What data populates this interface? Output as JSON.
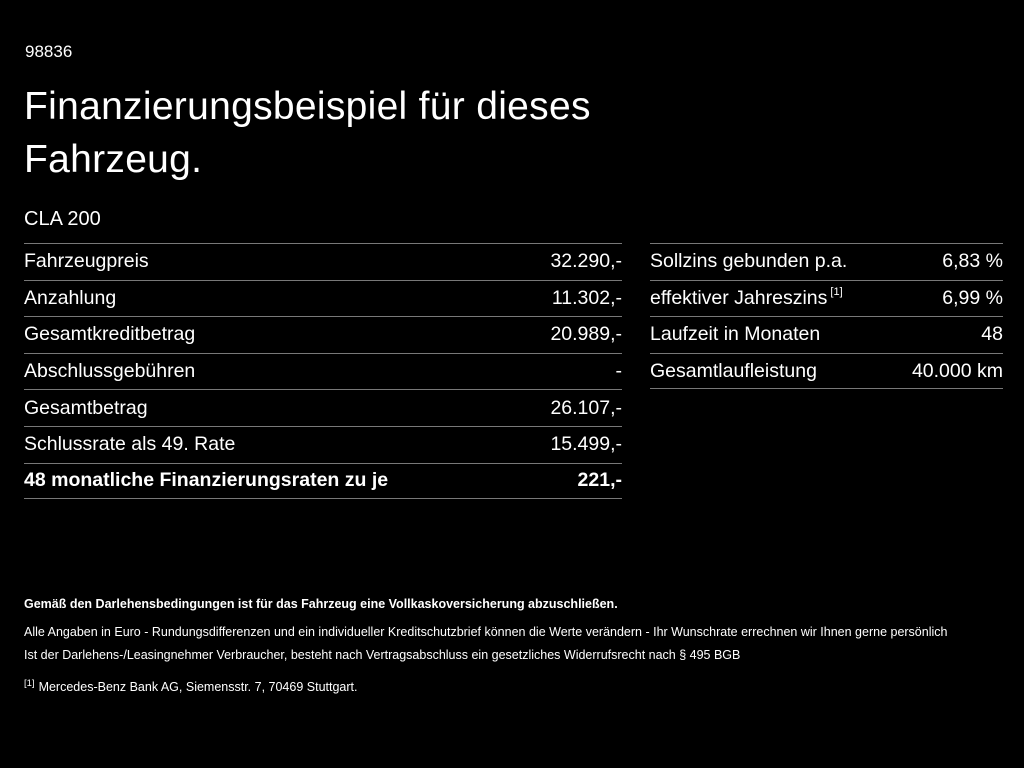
{
  "colors": {
    "background": "#000000",
    "text": "#ffffff",
    "divider": "#787878"
  },
  "header": {
    "ref_number": "98836",
    "title_line1": "Finanzierungsbeispiel für dieses",
    "title_line2": "Fahrzeug.",
    "model": "CLA 200"
  },
  "finance_table": {
    "rows": [
      {
        "label": "Fahrzeugpreis",
        "value": "32.290,-"
      },
      {
        "label": "Anzahlung",
        "value": "11.302,-"
      },
      {
        "label": "Gesamtkreditbetrag",
        "value": "20.989,-"
      },
      {
        "label": "Abschlussgebühren",
        "value": "-"
      },
      {
        "label": "Gesamtbetrag",
        "value": "26.107,-"
      },
      {
        "label": "Schlussrate als 49. Rate",
        "value": "15.499,-"
      },
      {
        "label": "48 monatliche Finanzierungsraten zu je",
        "value": "221,-"
      }
    ]
  },
  "conditions_table": {
    "rows": [
      {
        "label": "Sollzins gebunden p.a.",
        "sup": "",
        "value": "6,83 %"
      },
      {
        "label": "effektiver Jahreszins",
        "sup": "[1]",
        "value": "6,99 %"
      },
      {
        "label": "Laufzeit in Monaten",
        "sup": "",
        "value": "48"
      },
      {
        "label": "Gesamtlaufleistung",
        "sup": "",
        "value": "40.000 km"
      }
    ]
  },
  "footnotes": {
    "insurance_note": "Gemäß den Darlehensbedingungen ist für das Fahrzeug eine Vollkaskoversicherung abzuschließen.",
    "disclaimer1": "Alle Angaben in Euro - Rundungsdifferenzen und ein individueller Kreditschutzbrief können die Werte verändern - Ihr Wunschrate errechnen wir Ihnen gerne persönlich",
    "disclaimer2": "Ist der Darlehens-/Leasingnehmer Verbraucher, besteht nach Vertragsabschluss ein gesetzliches Widerrufsrecht nach § 495 BGB",
    "ref_marker": "[1]",
    "ref_text": "Mercedes-Benz Bank AG, Siemensstr. 7, 70469 Stuttgart."
  }
}
